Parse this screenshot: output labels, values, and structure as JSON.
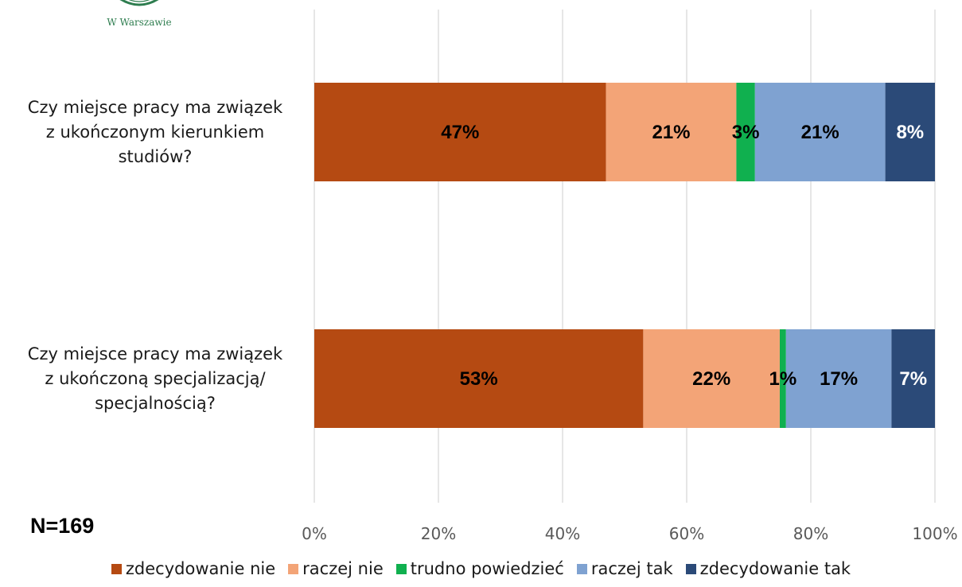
{
  "logo": {
    "text": "W Warszawie",
    "color": "#2e7d4f"
  },
  "sample_note": "N=169",
  "chart_data": {
    "type": "bar",
    "orientation": "horizontal",
    "stacked": true,
    "percent": true,
    "categories": [
      [
        "Czy miejsce pracy ma związek",
        "z ukończonym kierunkiem",
        "studiów?"
      ],
      [
        "Czy miejsce pracy ma związek",
        "z ukończoną specjalizacją/",
        "specjalnością?"
      ]
    ],
    "series": [
      {
        "name": "zdecydowanie nie",
        "color": "#b54a12",
        "values": [
          47,
          53
        ],
        "labels": [
          "47%",
          "53%"
        ]
      },
      {
        "name": "raczej nie",
        "color": "#f3a477",
        "values": [
          21,
          22
        ],
        "labels": [
          "21%",
          "22%"
        ]
      },
      {
        "name": "trudno powiedzieć",
        "color": "#10b04f",
        "values": [
          3,
          1
        ],
        "labels": [
          "3%",
          "1%"
        ]
      },
      {
        "name": "raczej tak",
        "color": "#7fa2d1",
        "values": [
          21,
          17
        ],
        "labels": [
          "21%",
          "17%"
        ]
      },
      {
        "name": "zdecydowanie tak",
        "color": "#2b4a78",
        "values": [
          8,
          7
        ],
        "labels": [
          "8%",
          "7%"
        ]
      }
    ],
    "xlim": [
      0,
      100
    ],
    "xticks": [
      0,
      20,
      40,
      60,
      80,
      100
    ],
    "xtick_labels": [
      "0%",
      "20%",
      "40%",
      "60%",
      "80%",
      "100%"
    ],
    "grid": "vertical",
    "legend": "bottom"
  }
}
